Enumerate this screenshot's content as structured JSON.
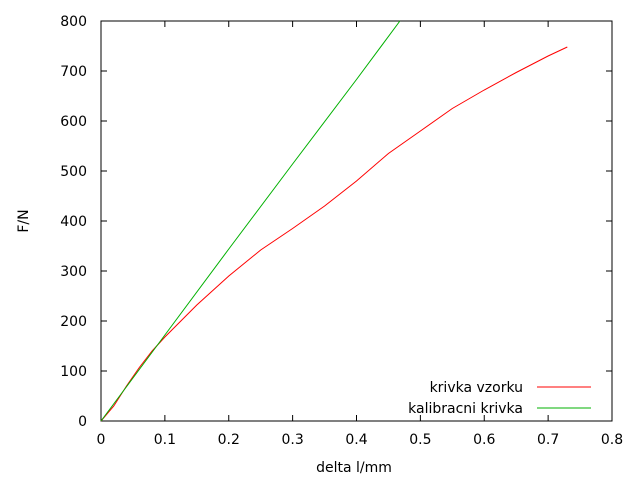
{
  "chart_data": {
    "type": "line",
    "title": "",
    "xlabel": "delta l/mm",
    "ylabel": "F/N",
    "xlim": [
      0,
      0.8
    ],
    "ylim": [
      0,
      800
    ],
    "x_ticks": [
      "0",
      "0.1",
      "0.2",
      "0.3",
      "0.4",
      "0.5",
      "0.6",
      "0.7",
      "0.8"
    ],
    "y_ticks": [
      "0",
      "100",
      "200",
      "300",
      "400",
      "500",
      "600",
      "700",
      "800"
    ],
    "grid": false,
    "legend_position": "bottom-right",
    "series": [
      {
        "name": "krivka vzorku",
        "color": "#ff0000",
        "x": [
          0,
          0.02,
          0.04,
          0.06,
          0.08,
          0.1,
          0.15,
          0.2,
          0.25,
          0.3,
          0.35,
          0.4,
          0.45,
          0.5,
          0.55,
          0.6,
          0.65,
          0.7,
          0.73
        ],
        "y": [
          0,
          30,
          70,
          107,
          140,
          168,
          232,
          290,
          342,
          385,
          430,
          480,
          535,
          580,
          625,
          662,
          697,
          730,
          748
        ]
      },
      {
        "name": "kalibracni krivka",
        "color": "#00b000",
        "x": [
          0,
          0.1,
          0.2,
          0.3,
          0.4,
          0.468
        ],
        "y": [
          0,
          172,
          344,
          514,
          683,
          800
        ]
      }
    ]
  }
}
